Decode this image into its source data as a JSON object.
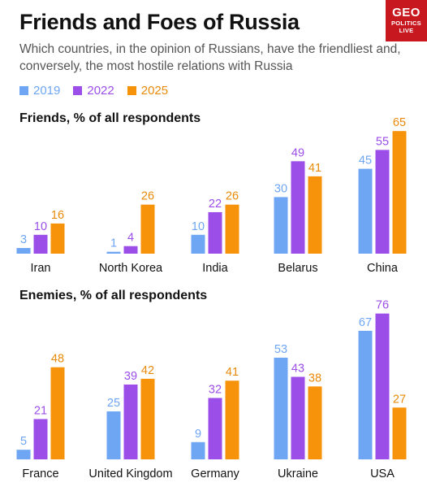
{
  "title": "Friends and Foes of Russia",
  "subtitle": "Which countries, in the opinion of Russians, have the friendliest and, conversely, the most hostile relations with Russia",
  "logo": {
    "line1": "GEO",
    "line2": "POLITICS",
    "line3": "LIVE"
  },
  "legend": [
    {
      "label": "2019",
      "color": "#6ea6f4"
    },
    {
      "label": "2022",
      "color": "#9b4ee8"
    },
    {
      "label": "2025",
      "color": "#f7930a"
    }
  ],
  "chart_data": [
    {
      "type": "bar",
      "title": "Friends, % of all respondents",
      "categories": [
        "Iran",
        "North Korea",
        "India",
        "Belarus",
        "China"
      ],
      "series": [
        {
          "name": "2019",
          "values": [
            3,
            1,
            10,
            30,
            45
          ]
        },
        {
          "name": "2022",
          "values": [
            10,
            4,
            22,
            49,
            55
          ]
        },
        {
          "name": "2025",
          "values": [
            16,
            26,
            26,
            41,
            65
          ]
        }
      ]
    },
    {
      "type": "bar",
      "title": "Enemies, % of all respondents",
      "categories": [
        "France",
        "United Kingdom",
        "Germany",
        "Ukraine",
        "USA"
      ],
      "series": [
        {
          "name": "2019",
          "values": [
            5,
            25,
            9,
            53,
            67
          ]
        },
        {
          "name": "2022",
          "values": [
            21,
            39,
            32,
            43,
            76
          ]
        },
        {
          "name": "2025",
          "values": [
            48,
            42,
            41,
            38,
            27
          ]
        }
      ]
    }
  ]
}
